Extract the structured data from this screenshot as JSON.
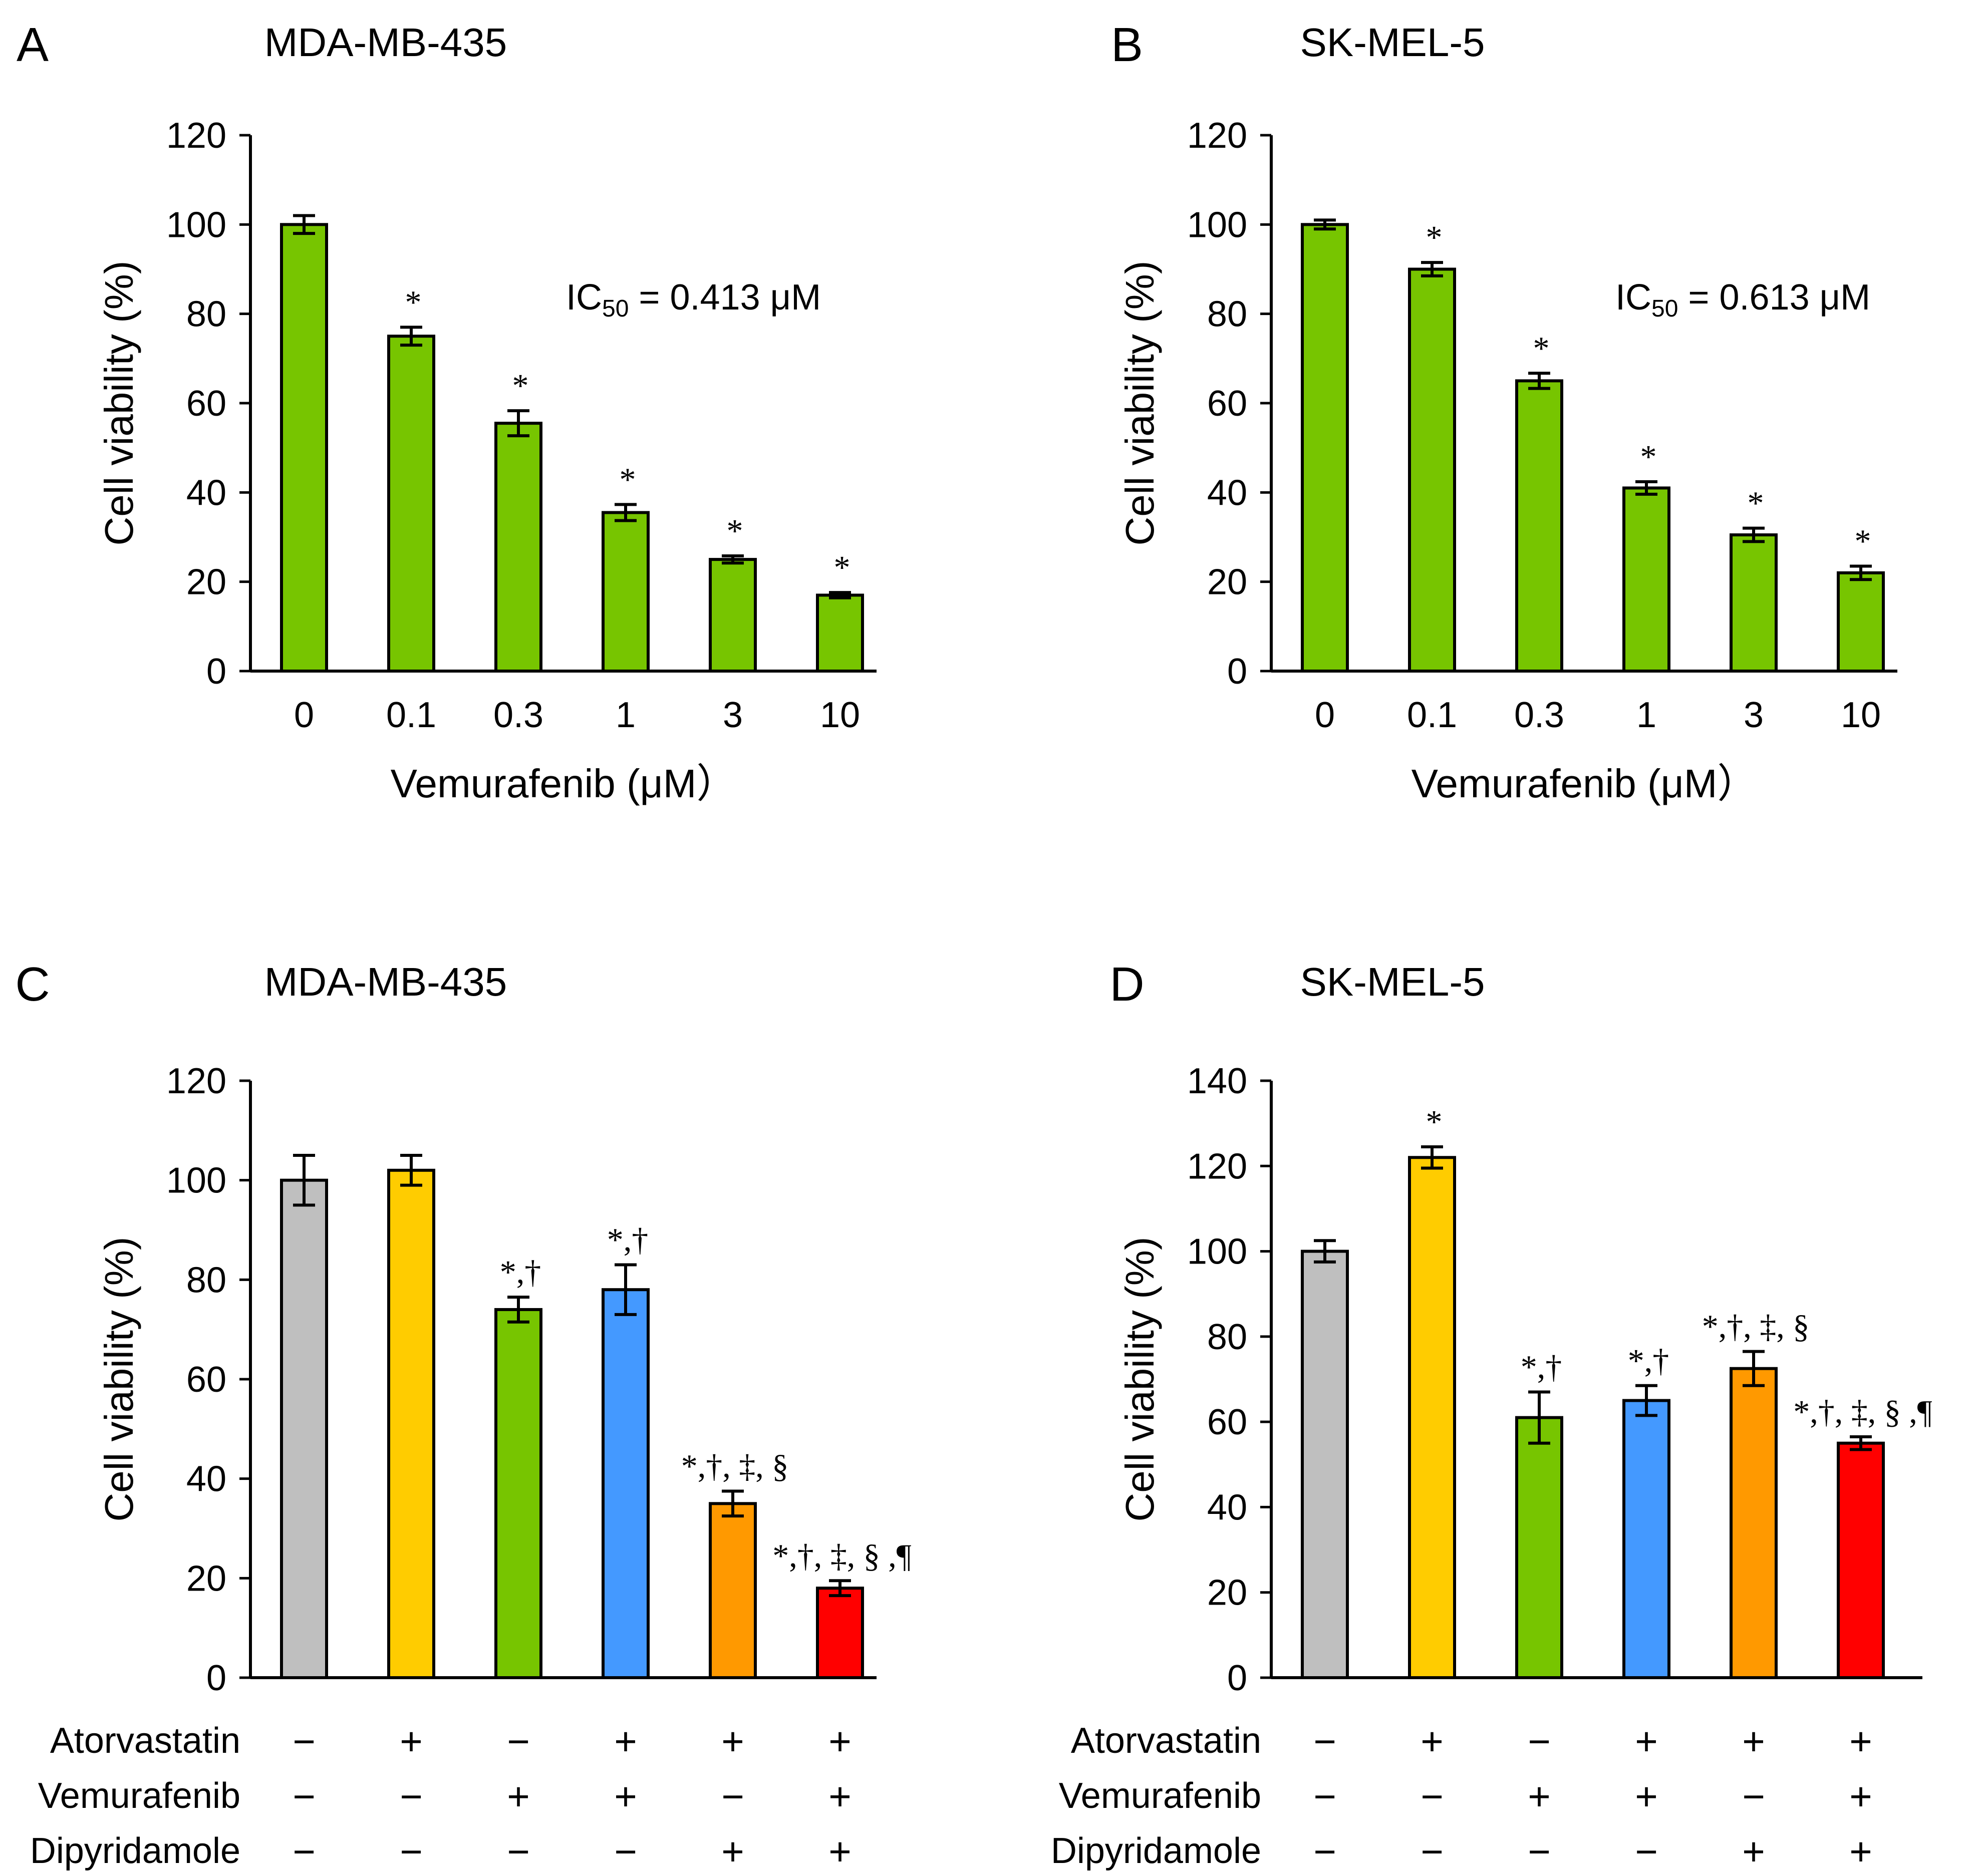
{
  "chart_data": [
    {
      "panel": "A",
      "type": "bar",
      "title": "MDA-MB-435",
      "xlabel": "Vemurafenib (μM）",
      "ylabel": "Cell viability (%)",
      "ylim": [
        0,
        120
      ],
      "yticks": [
        "0",
        "20",
        "40",
        "60",
        "80",
        "100",
        "120"
      ],
      "categories": [
        "0",
        "0.1",
        "0.3",
        "1",
        "3",
        "10"
      ],
      "values": [
        100,
        75,
        55.5,
        35.5,
        25,
        17
      ],
      "errors": [
        2,
        2,
        2.8,
        1.8,
        0.8,
        0.6
      ],
      "colors": [
        "#77c500",
        "#77c500",
        "#77c500",
        "#77c500",
        "#77c500",
        "#77c500"
      ],
      "significance": [
        "",
        "*",
        "*",
        "*",
        "*",
        "*"
      ],
      "annotation": {
        "prefix": "IC",
        "sub": "50",
        "suffix": " = 0.413 μM"
      }
    },
    {
      "panel": "B",
      "type": "bar",
      "title": "SK-MEL-5",
      "xlabel": "Vemurafenib (μM）",
      "ylabel": "Cell viability (%)",
      "ylim": [
        0,
        120
      ],
      "yticks": [
        "0",
        "20",
        "40",
        "60",
        "80",
        "100",
        "120"
      ],
      "categories": [
        "0",
        "0.1",
        "0.3",
        "1",
        "3",
        "10"
      ],
      "values": [
        100,
        90,
        65,
        41,
        30.5,
        22
      ],
      "errors": [
        1,
        1.5,
        1.7,
        1.4,
        1.5,
        1.5
      ],
      "colors": [
        "#77c500",
        "#77c500",
        "#77c500",
        "#77c500",
        "#77c500",
        "#77c500"
      ],
      "significance": [
        "",
        "*",
        "*",
        "*",
        "*",
        "*"
      ],
      "annotation": {
        "prefix": "IC",
        "sub": "50",
        "suffix": " =  0.613  μM"
      }
    },
    {
      "panel": "C",
      "type": "bar",
      "title": "MDA-MB-435",
      "ylabel": "Cell viability (%)",
      "ylim": [
        0,
        120
      ],
      "yticks": [
        "0",
        "20",
        "40",
        "60",
        "80",
        "100",
        "120"
      ],
      "values": [
        100,
        102,
        74,
        78,
        35,
        18
      ],
      "errors": [
        5,
        3,
        2.5,
        5,
        2.5,
        1.5
      ],
      "colors": [
        "#bfbfbf",
        "#ffcc00",
        "#77c500",
        "#4499ff",
        "#ff9900",
        "#ff0000"
      ],
      "significance": [
        "",
        "",
        "*,†",
        "*,†",
        "*,†, ‡, §",
        "*,†, ‡, § ,¶"
      ],
      "treatments": [
        {
          "label": "Atorvastatin",
          "signs": [
            "−",
            "+",
            "−",
            "+",
            "+",
            "+"
          ]
        },
        {
          "label": "Vemurafenib",
          "signs": [
            "−",
            "−",
            "+",
            "+",
            "−",
            "+"
          ]
        },
        {
          "label": "Dipyridamole",
          "signs": [
            "−",
            "−",
            "−",
            "−",
            "+",
            "+"
          ]
        }
      ]
    },
    {
      "panel": "D",
      "type": "bar",
      "title": "SK-MEL-5",
      "ylabel": "Cell viability (%)",
      "ylim": [
        0,
        140
      ],
      "yticks": [
        "0",
        "20",
        "40",
        "60",
        "80",
        "100",
        "120",
        "140"
      ],
      "values": [
        100,
        122,
        61,
        65,
        72.5,
        55
      ],
      "errors": [
        2.5,
        2.5,
        6,
        3.5,
        4,
        1.5
      ],
      "colors": [
        "#bfbfbf",
        "#ffcc00",
        "#77c500",
        "#4499ff",
        "#ff9900",
        "#ff0000"
      ],
      "significance": [
        "",
        "*",
        "*,†",
        "*,†",
        "*,†, ‡, §",
        "*,†, ‡, § ,¶"
      ],
      "treatments": [
        {
          "label": "Atorvastatin",
          "signs": [
            "−",
            "+",
            "−",
            "+",
            "+",
            "+"
          ]
        },
        {
          "label": "Vemurafenib",
          "signs": [
            "−",
            "−",
            "+",
            "+",
            "−",
            "+"
          ]
        },
        {
          "label": "Dipyridamole",
          "signs": [
            "−",
            "−",
            "−",
            "−",
            "+",
            "+"
          ]
        }
      ]
    }
  ]
}
